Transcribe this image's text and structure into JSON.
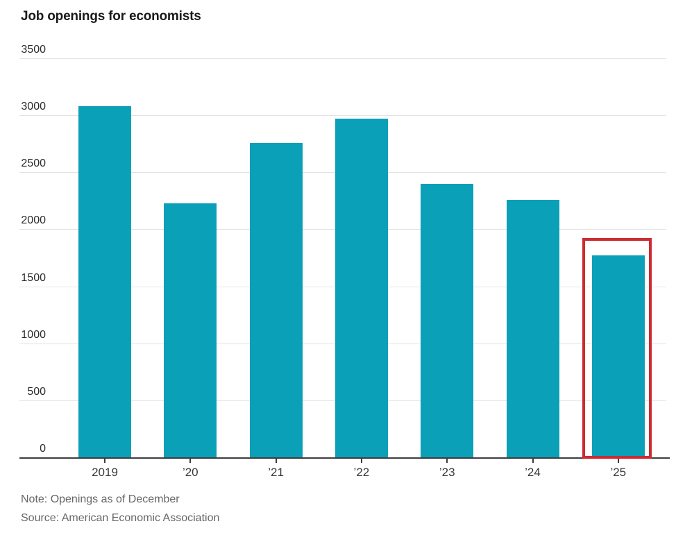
{
  "chart_data": {
    "type": "bar",
    "title": "Job openings for economists",
    "categories": [
      "2019",
      "’20",
      "’21",
      "’22",
      "’23",
      "’24",
      "’25"
    ],
    "values": [
      3080,
      2230,
      2760,
      2970,
      2400,
      2260,
      1770
    ],
    "xlabel": "",
    "ylabel": "",
    "ylim": [
      0,
      3500
    ],
    "yticks": [
      0,
      500,
      1000,
      1500,
      2000,
      2500,
      3000,
      3500
    ],
    "grid": "horizontal",
    "legend": "none",
    "highlight": {
      "category": "’25",
      "index": 6,
      "style": "red-outline-box"
    },
    "colors": {
      "bar": "#0aa0b8",
      "highlight_outline": "#cd2b32",
      "gridline": "#e3e3e3",
      "axis": "#3d3d3d",
      "title_text": "#1a1a1a",
      "tick_text": "#2b2b2b",
      "note_text": "#666666"
    },
    "note": "Note: Openings as of December",
    "source": "Source: American Economic Association"
  }
}
